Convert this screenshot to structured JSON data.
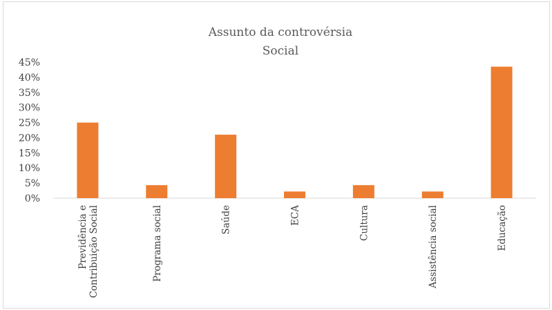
{
  "chart_data": {
    "type": "bar",
    "title": "Assunto da controvérsia",
    "subtitle": "Social",
    "categories": [
      [
        "Previdência e",
        "Contribuição Social"
      ],
      [
        "Programa social"
      ],
      [
        "Saúde"
      ],
      [
        "ECA"
      ],
      [
        "Cultura"
      ],
      [
        "Assistência social"
      ],
      [
        "Educação"
      ]
    ],
    "values": [
      25,
      4.3,
      21,
      2.2,
      4.3,
      2.2,
      43.5
    ],
    "ylim": [
      0,
      45
    ],
    "yticks": [
      "0%",
      "5%",
      "10%",
      "15%",
      "20%",
      "25%",
      "30%",
      "35%",
      "40%",
      "45%"
    ],
    "ytick_values": [
      0,
      5,
      10,
      15,
      20,
      25,
      30,
      35,
      40,
      45
    ],
    "grid": false,
    "legend": "none",
    "bar_color": "#ED7D31",
    "axis_color": "#d9d9d9"
  }
}
